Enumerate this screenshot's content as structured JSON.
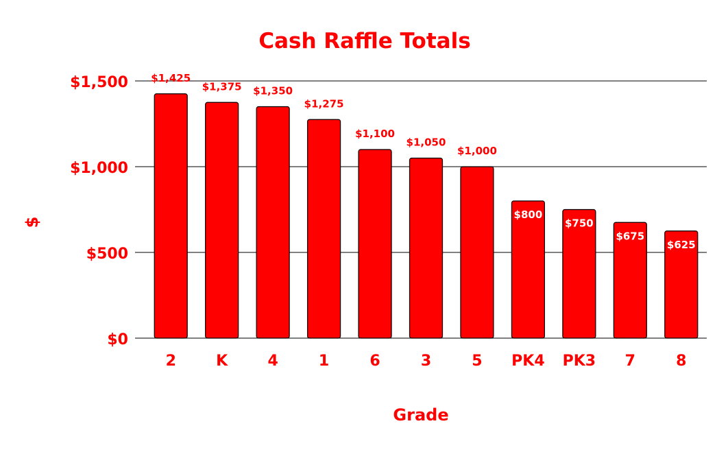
{
  "chart_data": {
    "type": "bar",
    "title": "Cash Raffle Totals",
    "xlabel": "Grade",
    "ylabel": "$",
    "categories": [
      "2",
      "K",
      "4",
      "1",
      "6",
      "3",
      "5",
      "PK4",
      "PK3",
      "7",
      "8"
    ],
    "values": [
      1425,
      1375,
      1350,
      1275,
      1100,
      1050,
      1000,
      800,
      750,
      675,
      625
    ],
    "data_labels": [
      "$1,425",
      "$1,375",
      "$1,350",
      "$1,275",
      "$1,100",
      "$1,050",
      "$1,000",
      "$800",
      "$750",
      "$675",
      "$625"
    ],
    "ylim": [
      0,
      1500
    ],
    "y_ticks": [
      0,
      500,
      1000,
      1500
    ],
    "y_tick_labels": [
      "$0",
      "$500",
      "$1,000",
      "$1,500"
    ],
    "grid": true,
    "legend": "none",
    "colors": {
      "bar_fill": "#ff0000",
      "bar_stroke": "#000000",
      "text": "#ff0000",
      "inner_label": "#ffffff",
      "grid": "#000000"
    }
  }
}
